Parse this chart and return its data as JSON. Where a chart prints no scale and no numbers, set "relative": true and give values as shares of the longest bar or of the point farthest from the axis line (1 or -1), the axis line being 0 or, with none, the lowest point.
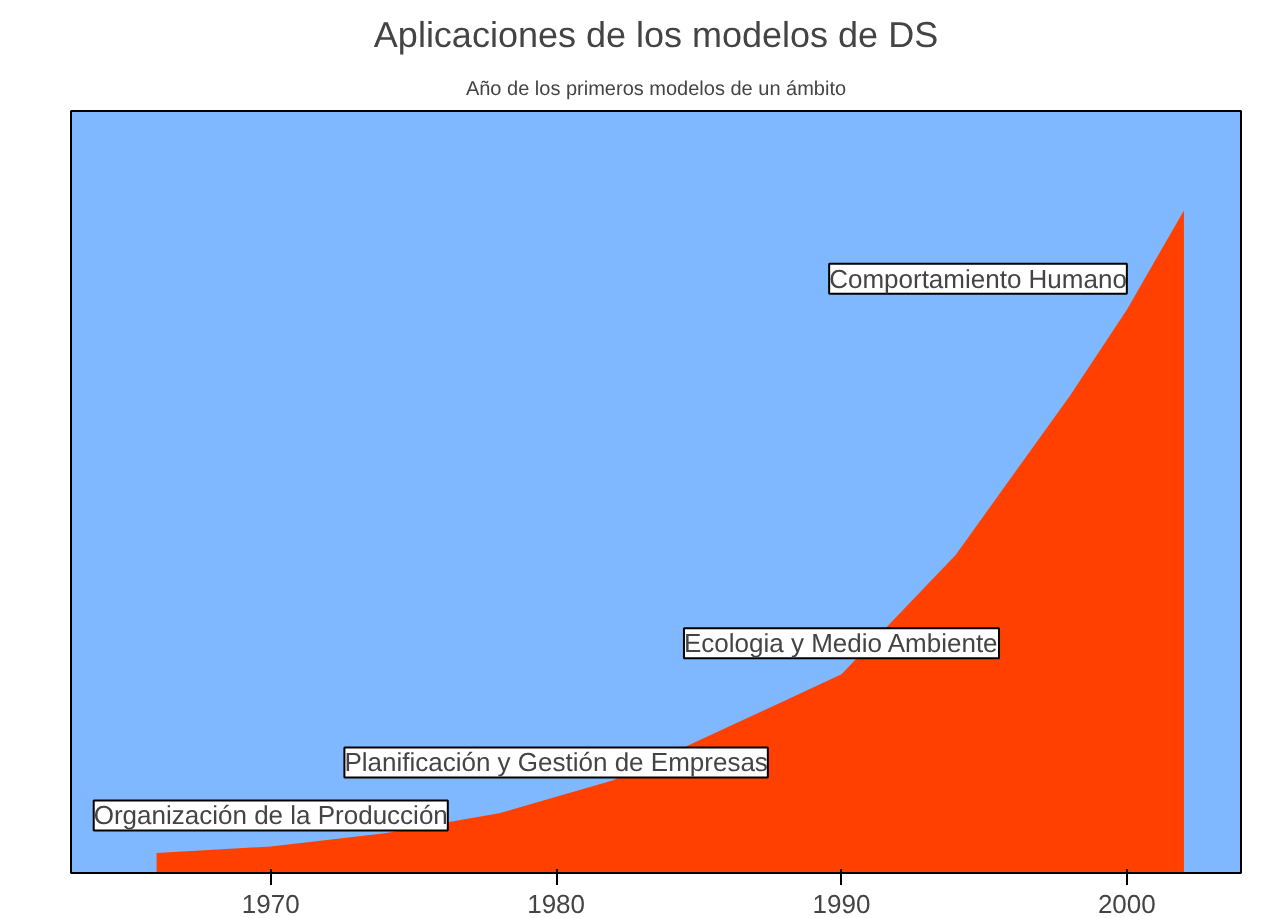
{
  "chart_data": {
    "type": "area",
    "title": "Aplicaciones de los modelos de DS",
    "subtitle": "Año de los primeros modelos de un ámbito",
    "relative": true,
    "x": [
      1966,
      1970,
      1974,
      1978,
      1982,
      1986,
      1990,
      1994,
      1998,
      2000,
      2002
    ],
    "xlim": [
      1963,
      2004
    ],
    "xticks": [
      1970,
      1980,
      1990,
      2000
    ],
    "series": [
      {
        "color": "#ff4000",
        "values": [
          0.03,
          0.04,
          0.06,
          0.09,
          0.14,
          0.22,
          0.3,
          0.48,
          0.72,
          0.85,
          1.0
        ]
      }
    ],
    "annotations": [
      {
        "text": "Organización de la Producción",
        "x": 1970,
        "y": 0.04
      },
      {
        "text": "Planificación y Gestión de Empresas",
        "x": 1980,
        "y": 0.12
      },
      {
        "text": "Ecologia y Medio Ambiente",
        "x": 1990,
        "y": 0.3
      },
      {
        "text": "Comportamiento Humano",
        "x": 2000,
        "y": 0.85
      }
    ],
    "grid": false
  }
}
